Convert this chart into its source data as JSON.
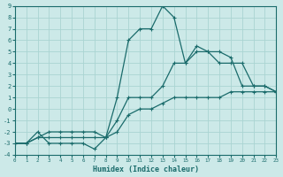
{
  "xlabel": "Humidex (Indice chaleur)",
  "xlim": [
    0,
    23
  ],
  "ylim": [
    -4,
    9
  ],
  "xticks": [
    0,
    1,
    2,
    3,
    4,
    5,
    6,
    7,
    8,
    9,
    10,
    11,
    12,
    13,
    14,
    15,
    16,
    17,
    18,
    19,
    20,
    21,
    22,
    23
  ],
  "yticks": [
    -4,
    -3,
    -2,
    -1,
    0,
    1,
    2,
    3,
    4,
    5,
    6,
    7,
    8,
    9
  ],
  "background_color": "#cce9e8",
  "grid_color": "#aad4d2",
  "line_color": "#1a6b6b",
  "line1_x": [
    0,
    1,
    2,
    3,
    4,
    5,
    6,
    7,
    8,
    9,
    10,
    11,
    12,
    13,
    14,
    15,
    16,
    17,
    18,
    19,
    20,
    21,
    22,
    23
  ],
  "line1_y": [
    -3.0,
    -3.0,
    -2.5,
    -2.0,
    -2.0,
    -2.0,
    -2.0,
    -2.0,
    -2.5,
    -1.0,
    1.0,
    1.0,
    1.0,
    2.0,
    4.0,
    4.0,
    5.0,
    5.0,
    4.0,
    4.0,
    4.0,
    2.0,
    2.0,
    1.5
  ],
  "line2_x": [
    0,
    1,
    2,
    3,
    4,
    5,
    6,
    7,
    8,
    9,
    10,
    11,
    12,
    13,
    14,
    15,
    16,
    17,
    18,
    19,
    20,
    21,
    22,
    23
  ],
  "line2_y": [
    -3.0,
    -3.0,
    -2.0,
    -3.0,
    -3.0,
    -3.0,
    -3.0,
    -3.5,
    -2.5,
    1.0,
    6.0,
    7.0,
    7.0,
    9.0,
    8.0,
    4.0,
    5.5,
    5.0,
    5.0,
    4.5,
    2.0,
    2.0,
    2.0,
    1.5
  ],
  "line3_x": [
    0,
    1,
    2,
    3,
    4,
    5,
    6,
    7,
    8,
    9,
    10,
    11,
    12,
    13,
    14,
    15,
    16,
    17,
    18,
    19,
    20,
    21,
    22,
    23
  ],
  "line3_y": [
    -3.0,
    -3.0,
    -2.5,
    -2.5,
    -2.5,
    -2.5,
    -2.5,
    -2.5,
    -2.5,
    -2.0,
    -0.5,
    0.0,
    0.0,
    0.5,
    1.0,
    1.0,
    1.0,
    1.0,
    1.0,
    1.5,
    1.5,
    1.5,
    1.5,
    1.5
  ]
}
